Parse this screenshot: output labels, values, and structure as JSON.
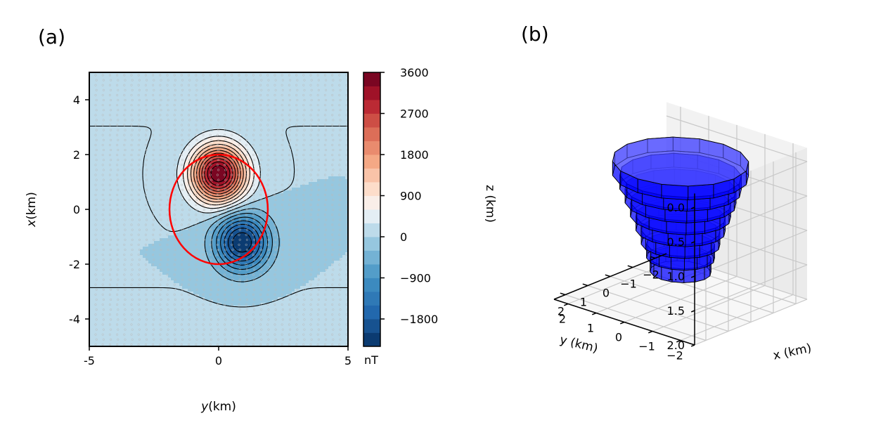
{
  "chart_data": [
    {
      "type": "heatmap",
      "panel_label": "(a)",
      "xlabel_prefix": "y",
      "xlabel_suffix": "(km)",
      "ylabel_prefix": "x",
      "ylabel_suffix": "(km)",
      "xlim": [
        -5,
        5
      ],
      "ylim": [
        -5,
        5
      ],
      "x_ticks": [
        -5,
        0,
        5
      ],
      "x_tick_labels": [
        "-5",
        "0",
        "5"
      ],
      "y_ticks": [
        -4,
        -2,
        0,
        2,
        4
      ],
      "y_tick_labels": [
        "-4",
        "-2",
        "0",
        "2",
        "4"
      ],
      "colormap": "RdBu_r",
      "colorbar": {
        "unit": "nT",
        "range": [
          -2400,
          3600
        ],
        "ticks": [
          3600,
          2700,
          1800,
          900,
          0,
          -900,
          -1800
        ],
        "tick_labels": [
          "3600",
          "2700",
          "1800",
          "900",
          "0",
          "−900",
          "−1800"
        ],
        "levels": 20
      },
      "anomaly": {
        "positive_peak_x_km": 1.3,
        "positive_peak_y_km": 0.0,
        "positive_peak_nT": 3600,
        "negative_peak_x_km": -1.2,
        "negative_peak_y_km": 0.9,
        "negative_peak_nT": -2400
      },
      "source_outline": {
        "center_x_km": 0.0,
        "center_y_km": 0.0,
        "radius_y_km": 1.9,
        "radius_x_km": 2.0,
        "color": "#ff0000"
      }
    },
    {
      "type": "3d-volume",
      "panel_label": "(b)",
      "xlabel": "x (km)",
      "ylabel": "y (km)",
      "zlabel": "z (km)",
      "x_tick_labels": [
        "−2",
        "−1",
        "0",
        "1",
        "2"
      ],
      "y_tick_labels": [
        "−2",
        "−1",
        "0",
        "1",
        "2"
      ],
      "z_tick_labels": [
        "0.0",
        "0.5",
        "1.0",
        "1.5",
        "2.0"
      ],
      "zlim": [
        0,
        2
      ],
      "face_color": "#0000ff",
      "layers": [
        {
          "z_top": 0.0,
          "z_bottom": 0.2,
          "radius_km": 1.9
        },
        {
          "z_top": 0.2,
          "z_bottom": 0.4,
          "radius_km": 1.7
        },
        {
          "z_top": 0.4,
          "z_bottom": 0.6,
          "radius_km": 1.55
        },
        {
          "z_top": 0.6,
          "z_bottom": 0.8,
          "radius_km": 1.4
        },
        {
          "z_top": 0.8,
          "z_bottom": 1.0,
          "radius_km": 1.25
        },
        {
          "z_top": 1.0,
          "z_bottom": 1.2,
          "radius_km": 1.1
        },
        {
          "z_top": 1.2,
          "z_bottom": 1.4,
          "radius_km": 0.95
        },
        {
          "z_top": 1.4,
          "z_bottom": 1.6,
          "radius_km": 0.85
        }
      ]
    }
  ]
}
